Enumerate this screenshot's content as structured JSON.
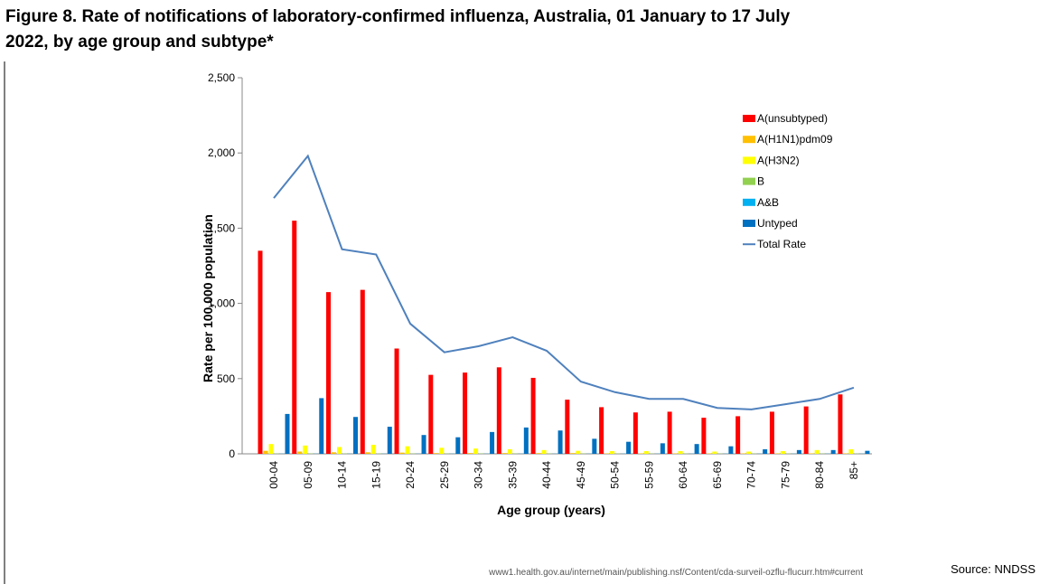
{
  "chart_data": {
    "type": "bar_line",
    "title": "Figure 8. Rate of notifications of laboratory-confirmed influenza, Australia, 01 January to 17 July 2022, by age group and subtype*",
    "x_label": "Age group (years)",
    "y_label": "Rate per 100,000 population",
    "source": "Source: NNDSS",
    "url": "www1.health.gov.au/internet/main/publishing.nsf/Content/cda-surveil-ozflu-flucurr.htm#current",
    "categories": [
      "00-04",
      "05-09",
      "10-14",
      "15-19",
      "20-24",
      "25-29",
      "30-34",
      "35-39",
      "40-44",
      "45-49",
      "50-54",
      "55-59",
      "60-64",
      "65-69",
      "70-74",
      "75-79",
      "80-84",
      "85+"
    ],
    "ylim": [
      0,
      2500
    ],
    "yticks": [
      0,
      500,
      {
        "value": 1000,
        "label": "1,000"
      },
      {
        "value": 1500,
        "label": "1,500"
      },
      {
        "value": 2000,
        "label": "2,000"
      },
      {
        "value": 2500,
        "label": "2,500"
      }
    ],
    "series": [
      {
        "name": "A(unsubtyped)",
        "type": "bar",
        "color": "#ff0000",
        "values": [
          1350,
          1550,
          1075,
          1090,
          700,
          525,
          540,
          575,
          505,
          360,
          310,
          275,
          280,
          240,
          250,
          280,
          315,
          395
        ]
      },
      {
        "name": "A(H1N1)pdm09",
        "type": "bar",
        "color": "#ffc000",
        "values": [
          20,
          15,
          10,
          10,
          8,
          5,
          5,
          5,
          5,
          5,
          3,
          3,
          3,
          3,
          3,
          3,
          3,
          3
        ]
      },
      {
        "name": "A(H3N2)",
        "type": "bar",
        "color": "#ffff00",
        "values": [
          65,
          55,
          45,
          60,
          50,
          40,
          35,
          30,
          25,
          20,
          18,
          18,
          18,
          15,
          15,
          18,
          25,
          30
        ]
      },
      {
        "name": "B",
        "type": "bar",
        "color": "#92d050",
        "values": [
          2,
          2,
          2,
          2,
          2,
          2,
          2,
          2,
          2,
          2,
          2,
          2,
          2,
          2,
          2,
          2,
          2,
          2
        ]
      },
      {
        "name": "A&B",
        "type": "bar",
        "color": "#00b0f0",
        "values": [
          1,
          1,
          1,
          1,
          1,
          1,
          1,
          1,
          1,
          1,
          1,
          1,
          1,
          1,
          1,
          1,
          1,
          1
        ]
      },
      {
        "name": "Untyped",
        "type": "bar",
        "color": "#0070c0",
        "values": [
          265,
          370,
          245,
          180,
          125,
          110,
          145,
          175,
          155,
          100,
          80,
          70,
          65,
          50,
          30,
          25,
          25,
          20
        ]
      },
      {
        "name": "Total Rate",
        "type": "line",
        "color": "#4f81bd",
        "values": [
          1700,
          1980,
          1360,
          1325,
          865,
          675,
          715,
          775,
          685,
          480,
          410,
          365,
          365,
          305,
          295,
          330,
          365,
          440
        ]
      }
    ]
  }
}
